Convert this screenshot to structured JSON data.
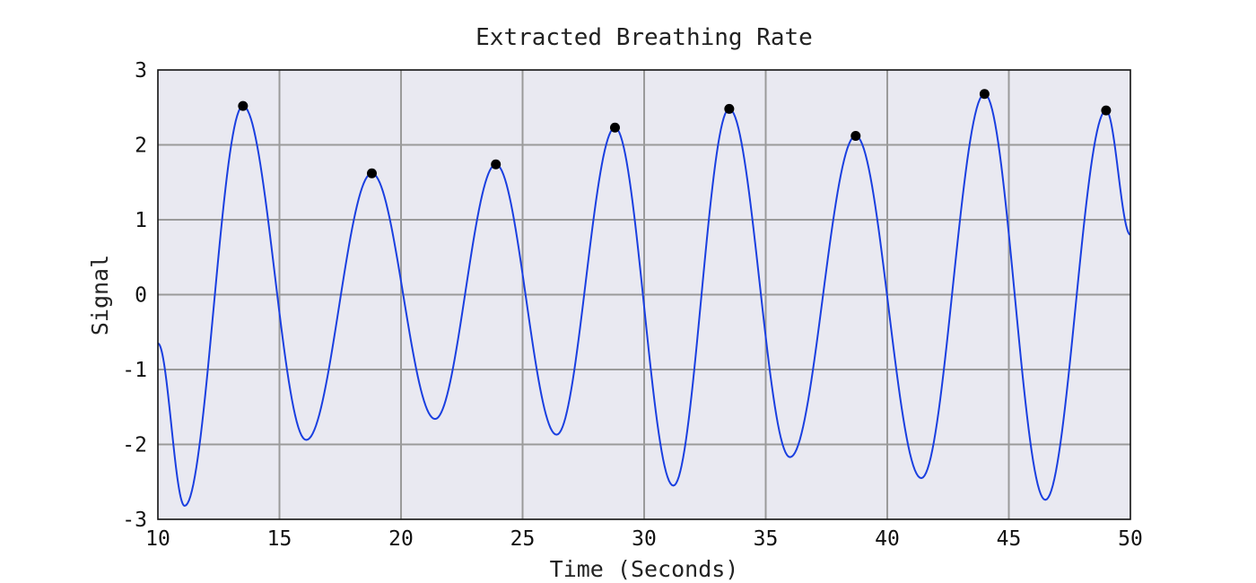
{
  "chart_data": {
    "type": "line",
    "title": "Extracted Breathing Rate",
    "xlabel": "Time (Seconds)",
    "ylabel": "Signal",
    "xlim": [
      10,
      50
    ],
    "ylim": [
      -3,
      3
    ],
    "xticks": [
      10,
      15,
      20,
      25,
      30,
      35,
      40,
      45,
      50
    ],
    "yticks": [
      -3,
      -2,
      -1,
      0,
      1,
      2,
      3
    ],
    "grid": true,
    "series": [
      {
        "style": "line",
        "color": "#1a3fe0",
        "x": [
          10.0,
          11.1,
          13.5,
          16.1,
          18.8,
          21.4,
          23.9,
          26.4,
          28.8,
          31.2,
          33.5,
          36.0,
          38.7,
          41.4,
          44.0,
          46.5,
          49.0,
          50.0
        ],
        "y": [
          -0.65,
          -2.82,
          2.52,
          -1.94,
          1.62,
          -1.66,
          1.74,
          -1.87,
          2.23,
          -2.55,
          2.48,
          -2.17,
          2.12,
          -2.45,
          2.68,
          -2.74,
          2.46,
          0.8
        ]
      },
      {
        "style": "scatter",
        "color": "#000000",
        "x": [
          13.5,
          18.8,
          23.9,
          28.8,
          33.5,
          38.7,
          44.0,
          49.0
        ],
        "y": [
          2.52,
          1.62,
          1.74,
          2.23,
          2.48,
          2.12,
          2.68,
          2.46
        ]
      }
    ]
  }
}
